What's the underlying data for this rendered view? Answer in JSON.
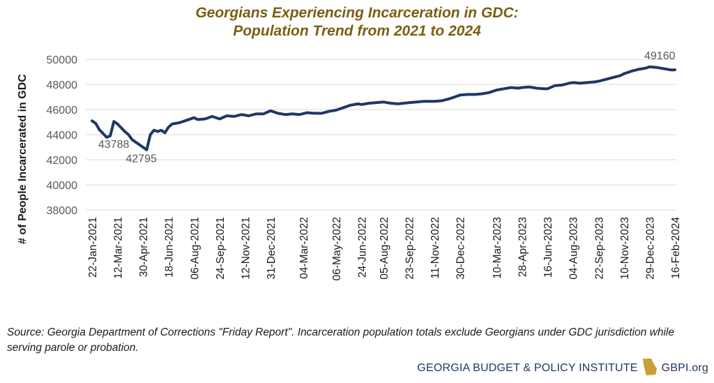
{
  "chart_data": {
    "type": "line",
    "title_line1": "Georgians Experiencing Incarceration in GDC:",
    "title_line2": "Population Trend from 2021 to 2024",
    "ylabel": "# of People Incarcerated in GDC",
    "xlabel": "",
    "ylim": [
      38000,
      50000
    ],
    "yticks": [
      38000,
      40000,
      42000,
      44000,
      46000,
      48000,
      50000
    ],
    "grid": true,
    "xtick_labels": [
      "22-Jan-2021",
      "12-Mar-2021",
      "30-Apr-2021",
      "18-Jun-2021",
      "06-Aug-2021",
      "24-Sep-2021",
      "12-Nov-2021",
      "31-Dec-2021",
      "04-Mar-2022",
      "06-May-2022",
      "24-Jun-2022",
      "05-Aug-2022",
      "23-Sep-2022",
      "11-Nov-2022",
      "30-Dec-2022",
      "10-Mar-2023",
      "28-Apr-2023",
      "16-Jun-2023",
      "04-Aug-2023",
      "22-Sep-2023",
      "10-Nov-2023",
      "29-Dec-2023",
      "16-Feb-2024"
    ],
    "series": [
      {
        "color": "#1f3864",
        "points": [
          [
            "2021-01-22",
            45100
          ],
          [
            "2021-01-29",
            44900
          ],
          [
            "2021-02-05",
            44400
          ],
          [
            "2021-02-12",
            44100
          ],
          [
            "2021-02-19",
            43788
          ],
          [
            "2021-02-26",
            43900
          ],
          [
            "2021-03-05",
            45050
          ],
          [
            "2021-03-12",
            44850
          ],
          [
            "2021-03-19",
            44550
          ],
          [
            "2021-03-26",
            44250
          ],
          [
            "2021-04-02",
            44000
          ],
          [
            "2021-04-09",
            43600
          ],
          [
            "2021-04-16",
            43400
          ],
          [
            "2021-04-23",
            43200
          ],
          [
            "2021-04-30",
            43000
          ],
          [
            "2021-05-07",
            42795
          ],
          [
            "2021-05-14",
            44000
          ],
          [
            "2021-05-21",
            44350
          ],
          [
            "2021-05-28",
            44250
          ],
          [
            "2021-06-04",
            44350
          ],
          [
            "2021-06-11",
            44150
          ],
          [
            "2021-06-18",
            44600
          ],
          [
            "2021-06-25",
            44850
          ],
          [
            "2021-07-09",
            44950
          ],
          [
            "2021-07-23",
            45150
          ],
          [
            "2021-08-06",
            45350
          ],
          [
            "2021-08-13",
            45200
          ],
          [
            "2021-08-27",
            45250
          ],
          [
            "2021-09-10",
            45450
          ],
          [
            "2021-09-24",
            45250
          ],
          [
            "2021-10-08",
            45500
          ],
          [
            "2021-10-22",
            45450
          ],
          [
            "2021-11-05",
            45600
          ],
          [
            "2021-11-19",
            45500
          ],
          [
            "2021-12-03",
            45650
          ],
          [
            "2021-12-17",
            45650
          ],
          [
            "2021-12-31",
            45900
          ],
          [
            "2022-01-14",
            45700
          ],
          [
            "2022-01-28",
            45600
          ],
          [
            "2022-02-11",
            45650
          ],
          [
            "2022-02-25",
            45600
          ],
          [
            "2022-03-11",
            45750
          ],
          [
            "2022-03-25",
            45700
          ],
          [
            "2022-04-08",
            45700
          ],
          [
            "2022-04-22",
            45850
          ],
          [
            "2022-05-06",
            45950
          ],
          [
            "2022-05-20",
            46150
          ],
          [
            "2022-06-03",
            46350
          ],
          [
            "2022-06-17",
            46450
          ],
          [
            "2022-06-24",
            46400
          ],
          [
            "2022-07-08",
            46500
          ],
          [
            "2022-07-22",
            46550
          ],
          [
            "2022-08-05",
            46600
          ],
          [
            "2022-08-19",
            46500
          ],
          [
            "2022-09-02",
            46450
          ],
          [
            "2022-09-23",
            46550
          ],
          [
            "2022-10-07",
            46600
          ],
          [
            "2022-10-21",
            46650
          ],
          [
            "2022-11-11",
            46650
          ],
          [
            "2022-11-25",
            46700
          ],
          [
            "2022-12-09",
            46850
          ],
          [
            "2022-12-23",
            47050
          ],
          [
            "2022-12-30",
            47150
          ],
          [
            "2023-01-13",
            47200
          ],
          [
            "2023-01-27",
            47200
          ],
          [
            "2023-02-10",
            47250
          ],
          [
            "2023-02-24",
            47350
          ],
          [
            "2023-03-10",
            47550
          ],
          [
            "2023-03-24",
            47650
          ],
          [
            "2023-04-07",
            47750
          ],
          [
            "2023-04-21",
            47700
          ],
          [
            "2023-04-28",
            47750
          ],
          [
            "2023-05-12",
            47800
          ],
          [
            "2023-05-26",
            47700
          ],
          [
            "2023-06-09",
            47650
          ],
          [
            "2023-06-16",
            47650
          ],
          [
            "2023-06-30",
            47900
          ],
          [
            "2023-07-14",
            47950
          ],
          [
            "2023-07-28",
            48100
          ],
          [
            "2023-08-04",
            48150
          ],
          [
            "2023-08-18",
            48100
          ],
          [
            "2023-09-01",
            48150
          ],
          [
            "2023-09-15",
            48200
          ],
          [
            "2023-09-22",
            48250
          ],
          [
            "2023-10-06",
            48400
          ],
          [
            "2023-10-20",
            48550
          ],
          [
            "2023-11-03",
            48700
          ],
          [
            "2023-11-10",
            48850
          ],
          [
            "2023-11-24",
            49050
          ],
          [
            "2023-12-08",
            49200
          ],
          [
            "2023-12-22",
            49300
          ],
          [
            "2023-12-29",
            49400
          ],
          [
            "2024-01-12",
            49350
          ],
          [
            "2024-01-26",
            49250
          ],
          [
            "2024-02-09",
            49150
          ],
          [
            "2024-02-16",
            49160
          ]
        ]
      }
    ],
    "annotations": [
      {
        "label": "43788",
        "x": "2021-02-19",
        "y": 43788
      },
      {
        "label": "42795",
        "x": "2021-05-07",
        "y": 42795
      },
      {
        "label": "49160",
        "x": "2024-02-16",
        "y": 49160
      }
    ]
  },
  "source_note": "Source: Georgia Department of Corrections \"Friday Report\". Incarceration population totals exclude Georgians under GDC jurisdiction while serving parole or probation.",
  "footer": {
    "org_name": "GEORGIA BUDGET & POLICY INSTITUTE",
    "website": "GBPI.org",
    "logo_icon": "georgia-state-icon",
    "logo_color": "#c8a038"
  }
}
